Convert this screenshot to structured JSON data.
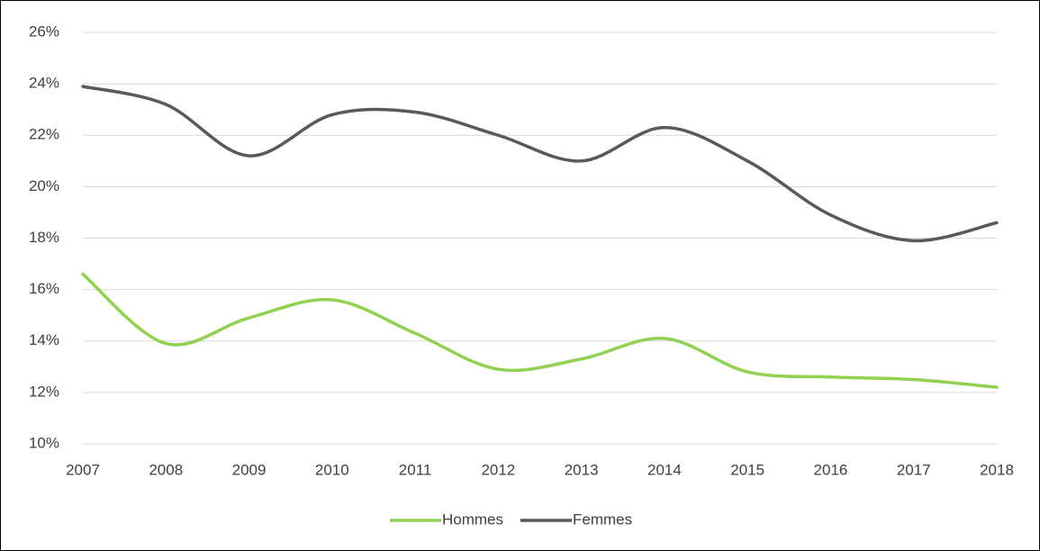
{
  "chart_data": {
    "type": "line",
    "x": [
      2007,
      2008,
      2009,
      2010,
      2011,
      2012,
      2013,
      2014,
      2015,
      2016,
      2017,
      2018
    ],
    "xlim": [
      2007,
      2018
    ],
    "xticks": [
      2007,
      2008,
      2009,
      2010,
      2011,
      2012,
      2013,
      2014,
      2015,
      2016,
      2017,
      2018
    ],
    "ylim": [
      10,
      26
    ],
    "yticks": [
      {
        "value": 10,
        "label": "10%"
      },
      {
        "value": 12,
        "label": "12%"
      },
      {
        "value": 14,
        "label": "14%"
      },
      {
        "value": 16,
        "label": "16%"
      },
      {
        "value": 18,
        "label": "18%"
      },
      {
        "value": 20,
        "label": "20%"
      },
      {
        "value": 22,
        "label": "22%"
      },
      {
        "value": 24,
        "label": "24%"
      },
      {
        "value": 26,
        "label": "26%"
      }
    ],
    "grid": true,
    "legend": "bottom",
    "series": [
      {
        "name": "Hommes",
        "color": "#92d050",
        "values": [
          16.6,
          13.9,
          14.9,
          15.6,
          14.3,
          12.9,
          13.3,
          14.1,
          12.8,
          12.6,
          12.5,
          12.2
        ]
      },
      {
        "name": "Femmes",
        "color": "#595959",
        "values": [
          23.9,
          23.2,
          21.2,
          22.8,
          22.9,
          22.0,
          21.0,
          22.3,
          21.0,
          18.9,
          17.9,
          18.6
        ]
      }
    ]
  }
}
